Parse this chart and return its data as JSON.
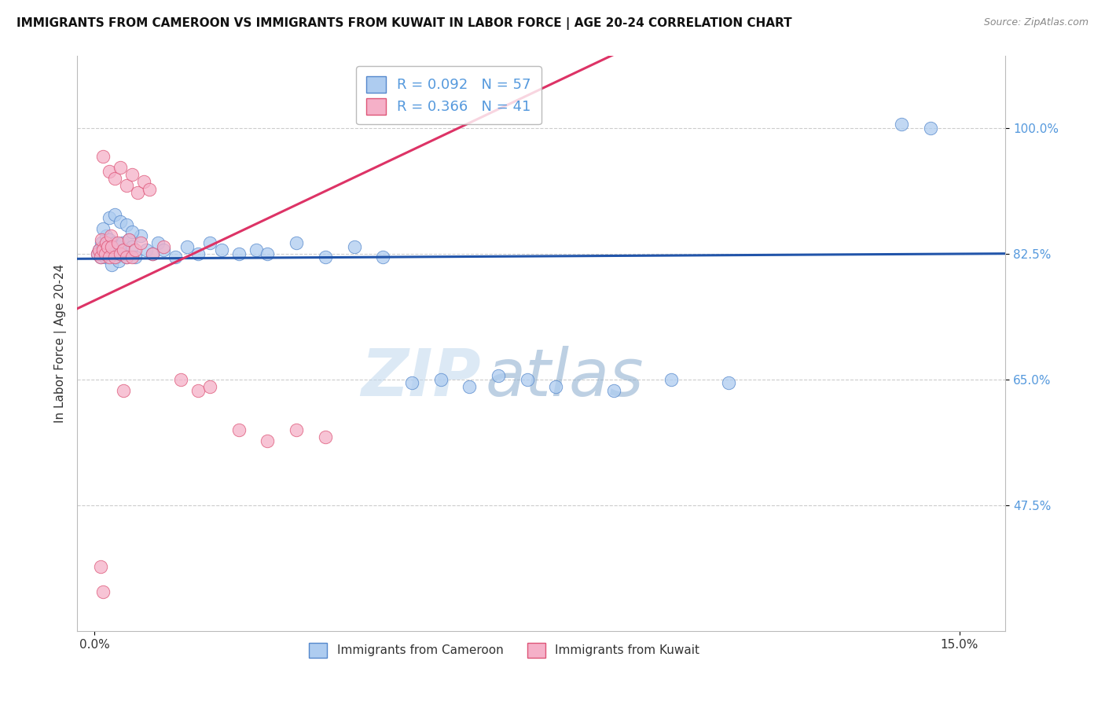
{
  "title": "IMMIGRANTS FROM CAMEROON VS IMMIGRANTS FROM KUWAIT IN LABOR FORCE | AGE 20-24 CORRELATION CHART",
  "source": "Source: ZipAtlas.com",
  "ylabel": "In Labor Force | Age 20-24",
  "xlim_min": -0.3,
  "xlim_max": 15.8,
  "ylim_min": 30.0,
  "ylim_max": 110.0,
  "yticks": [
    47.5,
    65.0,
    82.5,
    100.0
  ],
  "ytick_labels": [
    "47.5%",
    "65.0%",
    "82.5%",
    "100.0%"
  ],
  "xtick_vals": [
    0.0,
    15.0
  ],
  "xtick_labels": [
    "0.0%",
    "15.0%"
  ],
  "cameroon_color": "#aeccf0",
  "kuwait_color": "#f5b0c8",
  "cameroon_edge": "#5588cc",
  "kuwait_edge": "#dd5577",
  "trendline_cameroon": "#2255aa",
  "trendline_kuwait": "#dd3366",
  "cameroon_R": 0.092,
  "cameroon_N": 57,
  "kuwait_R": 0.366,
  "kuwait_N": 41,
  "legend_label_cameroon": "Immigrants from Cameroon",
  "legend_label_kuwait": "Immigrants from Kuwait",
  "watermark_zip": "ZIP",
  "watermark_atlas": "atlas",
  "ytick_color": "#5599dd",
  "xtick_color": "#333333",
  "cam_x": [
    0.05,
    0.08,
    0.1,
    0.12,
    0.15,
    0.18,
    0.2,
    0.22,
    0.25,
    0.28,
    0.3,
    0.32,
    0.35,
    0.38,
    0.4,
    0.42,
    0.45,
    0.48,
    0.5,
    0.55,
    0.6,
    0.65,
    0.7,
    0.8,
    0.9,
    1.0,
    1.1,
    1.2,
    1.4,
    1.6,
    1.8,
    2.0,
    2.2,
    2.5,
    2.8,
    3.0,
    3.5,
    4.0,
    4.5,
    5.0,
    5.5,
    6.0,
    6.5,
    7.0,
    7.5,
    8.0,
    9.0,
    10.0,
    11.0,
    14.0,
    14.5,
    0.15,
    0.25,
    0.35,
    0.45,
    0.55,
    0.65
  ],
  "cam_y": [
    82.5,
    83.0,
    82.0,
    84.0,
    83.5,
    82.0,
    85.0,
    83.0,
    84.5,
    82.5,
    81.0,
    83.0,
    84.0,
    82.0,
    83.5,
    81.5,
    82.5,
    84.0,
    83.0,
    82.0,
    84.5,
    83.5,
    82.0,
    85.0,
    83.0,
    82.5,
    84.0,
    83.0,
    82.0,
    83.5,
    82.5,
    84.0,
    83.0,
    82.5,
    83.0,
    82.5,
    84.0,
    82.0,
    83.5,
    82.0,
    64.5,
    65.0,
    64.0,
    65.5,
    65.0,
    64.0,
    63.5,
    65.0,
    64.5,
    100.5,
    100.0,
    86.0,
    87.5,
    88.0,
    87.0,
    86.5,
    85.5
  ],
  "kuw_x": [
    0.05,
    0.08,
    0.1,
    0.12,
    0.15,
    0.18,
    0.2,
    0.22,
    0.25,
    0.28,
    0.3,
    0.35,
    0.4,
    0.45,
    0.5,
    0.55,
    0.6,
    0.65,
    0.7,
    0.8,
    1.0,
    1.2,
    1.5,
    1.8,
    2.0,
    2.5,
    3.0,
    3.5,
    4.0,
    0.15,
    0.25,
    0.35,
    0.45,
    0.55,
    0.65,
    0.75,
    0.85,
    0.95,
    0.1,
    0.15,
    0.5
  ],
  "kuw_y": [
    82.5,
    83.0,
    82.0,
    84.5,
    83.0,
    82.5,
    84.0,
    83.5,
    82.0,
    85.0,
    83.5,
    82.0,
    84.0,
    82.5,
    83.0,
    82.0,
    84.5,
    82.0,
    83.0,
    84.0,
    82.5,
    83.5,
    65.0,
    63.5,
    64.0,
    58.0,
    56.5,
    58.0,
    57.0,
    96.0,
    94.0,
    93.0,
    94.5,
    92.0,
    93.5,
    91.0,
    92.5,
    91.5,
    39.0,
    35.5,
    63.5
  ]
}
